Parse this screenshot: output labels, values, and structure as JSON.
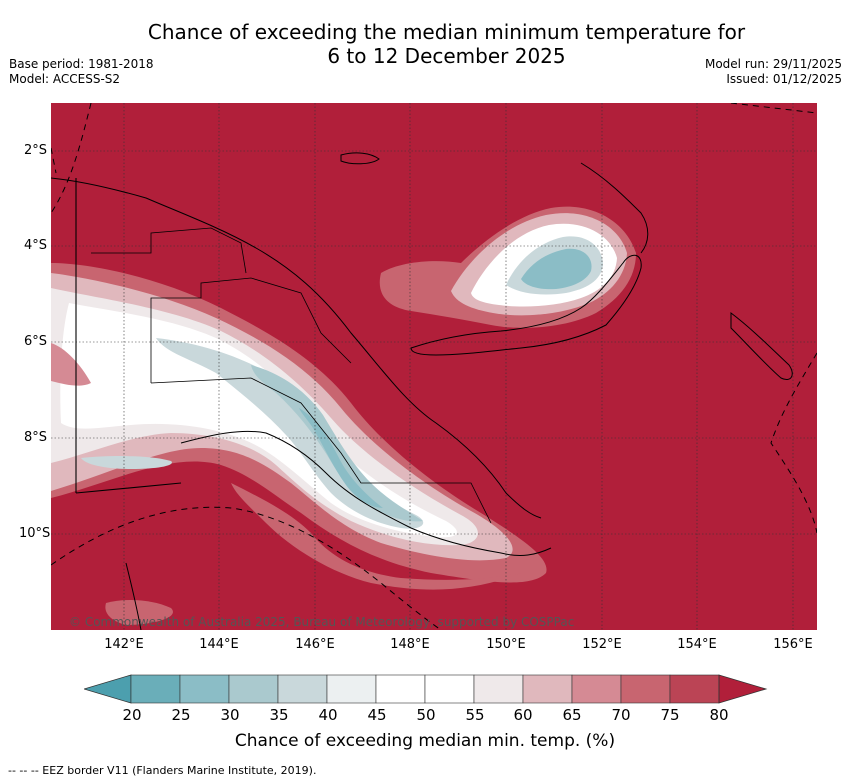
{
  "title": {
    "line1": "Chance of exceeding the median minimum temperature for",
    "line2": "6 to 12 December 2025"
  },
  "meta": {
    "base_period": "Base period: 1981-2018",
    "model": "Model: ACCESS-S2",
    "model_run": "Model run: 29/11/2025",
    "issued": "Issued: 01/12/2025"
  },
  "axes": {
    "lat_labels": [
      "2°S",
      "4°S",
      "6°S",
      "8°S",
      "10°S"
    ],
    "lon_labels": [
      "142°E",
      "144°E",
      "146°E",
      "148°E",
      "150°E",
      "152°E",
      "154°E",
      "156°E"
    ]
  },
  "copyright": "© Commonwealth of Australia 2025, Bureau of Meteorology, supported by COSPPac",
  "colorbar": {
    "ticks": [
      "20",
      "25",
      "30",
      "35",
      "40",
      "45",
      "50",
      "55",
      "60",
      "65",
      "70",
      "75",
      "80"
    ],
    "colors": [
      "#6aaeb9",
      "#8bbdc6",
      "#aac9ce",
      "#c9d8db",
      "#ecf0f1",
      "#ffffff",
      "#ffffff",
      "#efe9ea",
      "#e0b8bd",
      "#d58a94",
      "#c86570",
      "#bb4455"
    ],
    "under_color": "#4c9fae",
    "over_color": "#b11f3a",
    "label": "Chance of exceeding median min. temp. (%)"
  },
  "footnote": "-- -- -- EEZ border V11 (Flanders Marine Institute, 2019).",
  "colors": {
    "high": "#b11f3a",
    "r75": "#bb4455",
    "r70": "#c86570",
    "r65": "#d58a94",
    "r60": "#e0b8bd",
    "light": "#efe9ea",
    "white": "#ffffff",
    "b40": "#ecf0f1",
    "b35": "#c9d8db",
    "b30": "#aac9ce",
    "b25": "#8bbdc6",
    "b20": "#6aaeb9"
  }
}
